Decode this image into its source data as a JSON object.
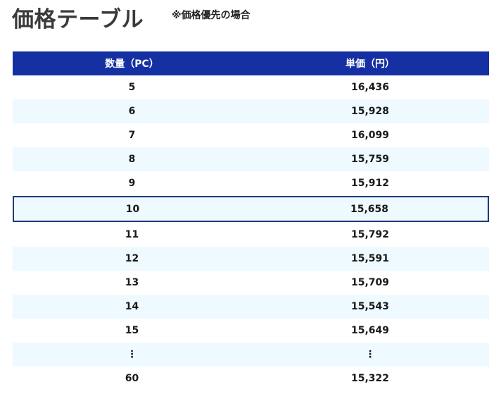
{
  "header": {
    "title": "価格テーブル",
    "note": "※価格優先の場合"
  },
  "table": {
    "columns": [
      "数量（PC）",
      "単価（円）"
    ],
    "rows": [
      {
        "qty": "5",
        "price": "16,436"
      },
      {
        "qty": "6",
        "price": "15,928"
      },
      {
        "qty": "7",
        "price": "16,099"
      },
      {
        "qty": "8",
        "price": "15,759"
      },
      {
        "qty": "9",
        "price": "15,912"
      },
      {
        "qty": "10",
        "price": "15,658"
      },
      {
        "qty": "11",
        "price": "15,792"
      },
      {
        "qty": "12",
        "price": "15,591"
      },
      {
        "qty": "13",
        "price": "15,709"
      },
      {
        "qty": "14",
        "price": "15,543"
      },
      {
        "qty": "15",
        "price": "15,649"
      },
      {
        "qty": "⋮",
        "price": "⋮"
      },
      {
        "qty": "60",
        "price": "15,322"
      }
    ]
  },
  "colors": {
    "header_bg": "#1530a3",
    "alt_row_bg": "#eefaff",
    "highlight_border": "#1f3a7a"
  }
}
